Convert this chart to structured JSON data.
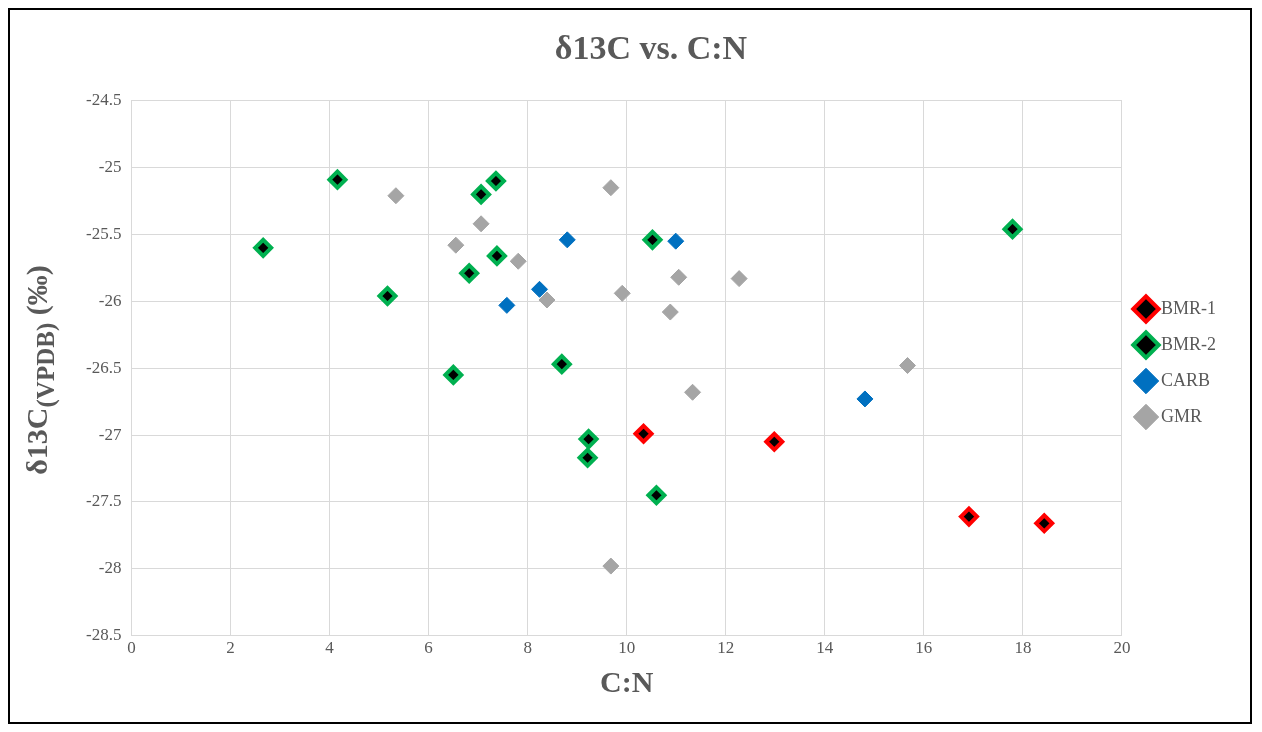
{
  "chart_data": {
    "type": "scatter",
    "title": "δ13C vs. C:N",
    "xlabel": "C:N",
    "ylabel": "δ13C$_{(VPDB)}$ (‰)",
    "xlim": [
      0,
      20
    ],
    "xticks": [
      0,
      2,
      4,
      6,
      8,
      10,
      12,
      14,
      16,
      18,
      20
    ],
    "ylim": [
      -28.5,
      -24.5
    ],
    "yticks": [
      -28.5,
      -28,
      -27.5,
      -27,
      -26.5,
      -26,
      -25.5,
      -25,
      -24.5
    ],
    "grid": true,
    "legend": "right",
    "marker": "diamond",
    "series": [
      {
        "name": "BMR-1",
        "color": "#ff0000",
        "x": [
          10.34,
          12.98,
          16.91,
          18.43
        ],
        "values": [
          -26.99,
          -27.05,
          -27.61,
          -27.66
        ]
      },
      {
        "name": "BMR-2",
        "color": "#00b050",
        "x": [
          2.66,
          4.16,
          5.17,
          6.5,
          6.82,
          7.06,
          7.36,
          7.38,
          8.69,
          9.23,
          9.21,
          10.52,
          10.6,
          17.79
        ],
        "values": [
          -25.6,
          -25.09,
          -25.96,
          -26.55,
          -25.79,
          -25.2,
          -25.1,
          -25.66,
          -26.47,
          -27.03,
          -27.17,
          -25.54,
          -27.45,
          -25.46
        ]
      },
      {
        "name": "CARB",
        "color": "#0070c0",
        "x": [
          8.8,
          7.58,
          8.24,
          10.99,
          14.81
        ],
        "values": [
          -25.54,
          -26.03,
          -25.91,
          -25.55,
          -26.73
        ]
      },
      {
        "name": "GMR",
        "color": "#a5a5a5",
        "x": [
          5.34,
          6.55,
          7.06,
          7.81,
          8.39,
          9.68,
          9.91,
          10.88,
          11.05,
          11.33,
          12.27,
          15.67,
          9.68
        ],
        "values": [
          -25.21,
          -25.58,
          -25.42,
          -25.7,
          -25.99,
          -25.15,
          -25.94,
          -26.08,
          -25.82,
          -26.68,
          -25.83,
          -26.48,
          -27.98
        ]
      }
    ]
  }
}
